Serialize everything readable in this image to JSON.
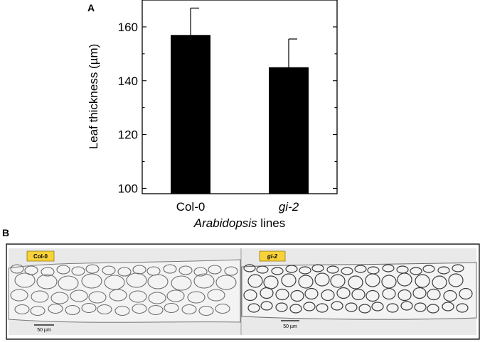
{
  "panel_a": {
    "letter": "A"
  },
  "panel_b": {
    "letter": "B",
    "images": [
      {
        "tag": "Col-0",
        "scale_bar_label": "50 µm",
        "tag_color": "#f7d23a"
      },
      {
        "tag": "gi-2",
        "scale_bar_label": "50 µm",
        "tag_color": "#f7d23a"
      }
    ]
  },
  "chart_data": {
    "type": "bar",
    "categories": [
      "Col-0",
      "gi-2"
    ],
    "values": [
      157,
      145
    ],
    "errors": [
      10,
      10.5
    ],
    "ylabel": "Leaf thickness (µm)",
    "xlabel_italic": "Arabidopsis",
    "xlabel_rest": " lines",
    "ylim": [
      98,
      170
    ],
    "yticks": [
      100,
      120,
      140,
      160
    ],
    "bar_color": "#000000",
    "grid": false
  }
}
